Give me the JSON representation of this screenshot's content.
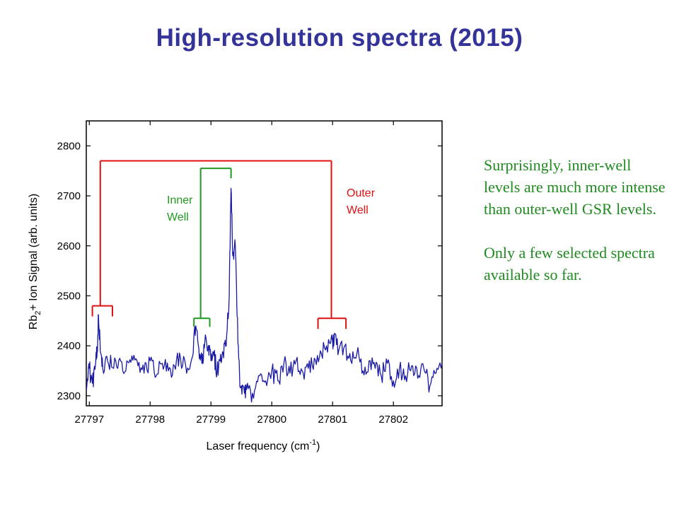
{
  "slide": {
    "title": "High-resolution spectra (2015)",
    "note_1": "Surprisingly, inner-well levels are much more intense than outer-well GSR levels.",
    "note_2": "Only a few selected spectra available so far."
  },
  "colors": {
    "title": "#333399",
    "trace": "#1a1aa6",
    "outer": "#e01010",
    "inner": "#1f991f",
    "note": "#1f8a1f"
  },
  "chart_data": {
    "type": "line",
    "xlabel_main": "Laser frequency (cm",
    "xlabel_sup": "-1",
    "xlabel_end": ")",
    "ylabel_pre": "Rb",
    "ylabel_sub": "2",
    "ylabel_post": "+ Ion Signal (arb. units)",
    "xlim": [
      27796.95,
      27802.8
    ],
    "ylim": [
      2280,
      2850
    ],
    "xticks": [
      27797,
      27798,
      27799,
      27800,
      27801,
      27802
    ],
    "yticks": [
      2300,
      2400,
      2500,
      2600,
      2700,
      2800
    ],
    "series": [
      {
        "color": "#1a1aa6",
        "points": [
          [
            27796.95,
            2310
          ],
          [
            27797.0,
            2355
          ],
          [
            27797.05,
            2325
          ],
          [
            27797.1,
            2360
          ],
          [
            27797.13,
            2395
          ],
          [
            27797.15,
            2462
          ],
          [
            27797.18,
            2390
          ],
          [
            27797.22,
            2355
          ],
          [
            27797.3,
            2370
          ],
          [
            27797.4,
            2355
          ],
          [
            27797.5,
            2375
          ],
          [
            27797.6,
            2350
          ],
          [
            27797.7,
            2380
          ],
          [
            27797.8,
            2360
          ],
          [
            27797.9,
            2345
          ],
          [
            27798.0,
            2370
          ],
          [
            27798.1,
            2340
          ],
          [
            27798.2,
            2365
          ],
          [
            27798.3,
            2350
          ],
          [
            27798.4,
            2360
          ],
          [
            27798.5,
            2375
          ],
          [
            27798.6,
            2345
          ],
          [
            27798.7,
            2380
          ],
          [
            27798.75,
            2440
          ],
          [
            27798.8,
            2395
          ],
          [
            27798.85,
            2365
          ],
          [
            27798.9,
            2410
          ],
          [
            27798.95,
            2395
          ],
          [
            27799.0,
            2370
          ],
          [
            27799.05,
            2380
          ],
          [
            27799.1,
            2350
          ],
          [
            27799.15,
            2370
          ],
          [
            27799.2,
            2385
          ],
          [
            27799.25,
            2400
          ],
          [
            27799.3,
            2500
          ],
          [
            27799.33,
            2715
          ],
          [
            27799.36,
            2580
          ],
          [
            27799.4,
            2600
          ],
          [
            27799.43,
            2460
          ],
          [
            27799.47,
            2340
          ],
          [
            27799.5,
            2320
          ],
          [
            27799.55,
            2305
          ],
          [
            27799.6,
            2325
          ],
          [
            27799.7,
            2295
          ],
          [
            27799.8,
            2340
          ],
          [
            27799.9,
            2330
          ],
          [
            27800.0,
            2350
          ],
          [
            27800.1,
            2330
          ],
          [
            27800.2,
            2365
          ],
          [
            27800.3,
            2345
          ],
          [
            27800.4,
            2370
          ],
          [
            27800.5,
            2350
          ],
          [
            27800.6,
            2355
          ],
          [
            27800.7,
            2375
          ],
          [
            27800.8,
            2390
          ],
          [
            27800.9,
            2400
          ],
          [
            27801.0,
            2410
          ],
          [
            27801.03,
            2425
          ],
          [
            27801.1,
            2390
          ],
          [
            27801.2,
            2400
          ],
          [
            27801.3,
            2370
          ],
          [
            27801.4,
            2385
          ],
          [
            27801.5,
            2350
          ],
          [
            27801.6,
            2370
          ],
          [
            27801.7,
            2355
          ],
          [
            27801.8,
            2340
          ],
          [
            27801.9,
            2365
          ],
          [
            27802.0,
            2330
          ],
          [
            27802.1,
            2355
          ],
          [
            27802.2,
            2340
          ],
          [
            27802.3,
            2360
          ],
          [
            27802.4,
            2335
          ],
          [
            27802.5,
            2355
          ],
          [
            27802.6,
            2320
          ],
          [
            27802.7,
            2345
          ],
          [
            27802.8,
            2365
          ]
        ]
      }
    ],
    "annotations": {
      "outer": {
        "label_line1": "Outer",
        "label_line2": "Well",
        "color": "#e01010",
        "top_y": 2770,
        "left": {
          "x": 27797.18,
          "bracket_y": 2480,
          "x0": 27797.05,
          "x1": 27797.38
        },
        "right": {
          "x": 27800.98,
          "bracket_y": 2455,
          "x0": 27800.76,
          "x1": 27801.22
        }
      },
      "inner": {
        "label_line1": "Inner",
        "label_line2": "Well",
        "color": "#1f991f",
        "top_y": 2755,
        "left": {
          "x": 27798.83,
          "bracket_y": 2455,
          "x0": 27798.72,
          "x1": 27798.98
        },
        "right": {
          "x": 27799.33,
          "bracket_y": 2730,
          "x0": 27799.33,
          "x1": 27799.33
        }
      }
    }
  }
}
